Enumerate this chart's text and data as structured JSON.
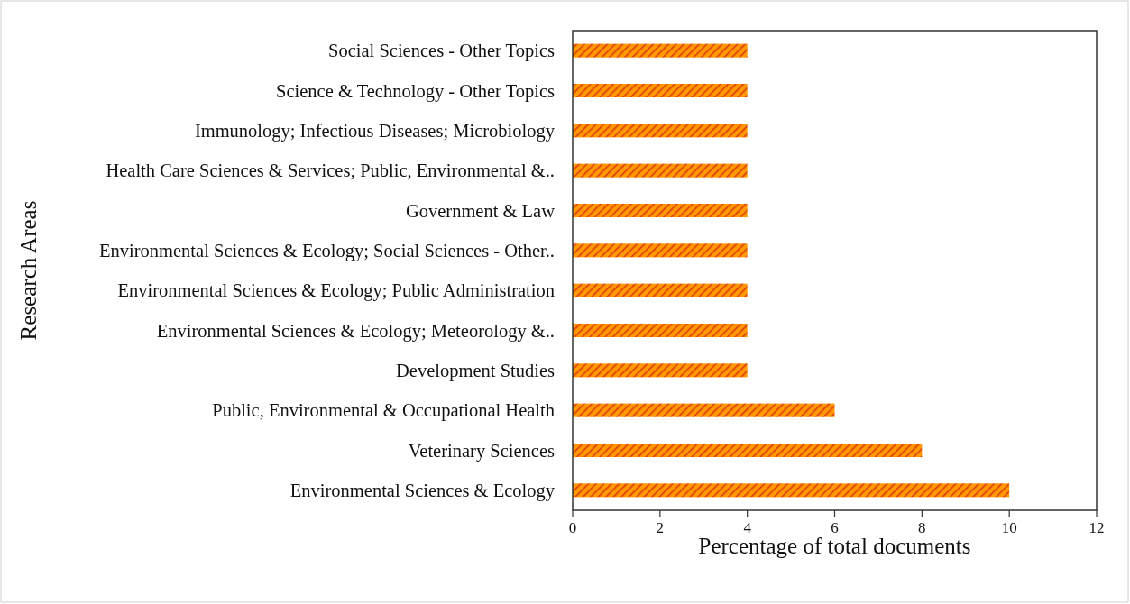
{
  "chart_data": {
    "type": "bar",
    "orientation": "horizontal",
    "xlabel": "Percentage of total documents",
    "ylabel": "Research Areas",
    "categories": [
      "Social Sciences - Other Topics",
      "Science & Technology - Other Topics",
      "Immunology; Infectious Diseases; Microbiology",
      "Health Care Sciences & Services; Public, Environmental &..",
      "Government & Law",
      "Environmental Sciences & Ecology; Social Sciences - Other..",
      "Environmental Sciences & Ecology; Public Administration",
      "Environmental Sciences & Ecology; Meteorology &..",
      "Development Studies",
      "Public, Environmental & Occupational Health",
      "Veterinary Sciences",
      "Environmental Sciences & Ecology"
    ],
    "values": [
      4,
      4,
      4,
      4,
      4,
      4,
      4,
      4,
      4,
      6,
      8,
      10
    ],
    "color": "#ff9900",
    "xlim": [
      0,
      12
    ],
    "xticks": [
      0,
      2,
      4,
      6,
      8,
      10,
      12
    ]
  }
}
